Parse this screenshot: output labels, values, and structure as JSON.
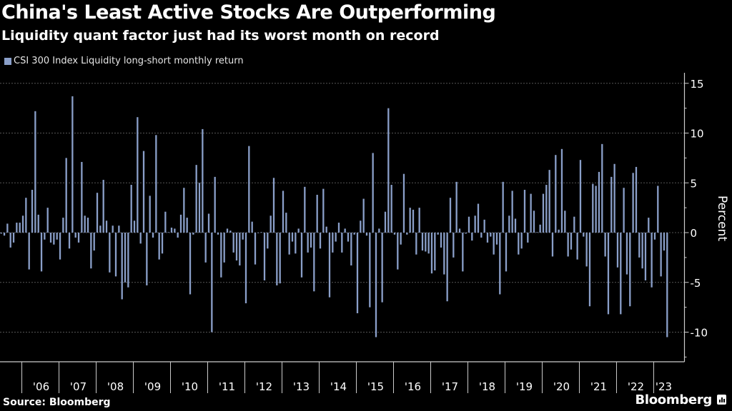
{
  "header": {
    "title": "China's Least Active Stocks Are Outperforming",
    "subtitle": "Liquidity quant factor just had its worst month on record"
  },
  "footer": {
    "source": "Source: Bloomberg",
    "brand": "Bloomberg"
  },
  "colors": {
    "bar": "#8a9fc9",
    "background": "#000000",
    "grid": "#555555",
    "axis": "#cccccc"
  },
  "chart_data": {
    "type": "bar",
    "title": "China's Least Active Stocks Are Outperforming",
    "subtitle": "Liquidity quant factor just had its worst month on record",
    "legend": [
      "CSI 300 Index Liquidity long-short monthly return"
    ],
    "legend_position": "top-left",
    "xlabel": "",
    "ylabel": "Percent",
    "y_axis_side": "right",
    "ylim": [
      -13,
      16
    ],
    "yticks": [
      15,
      10,
      5,
      0,
      -5,
      -10
    ],
    "grid": true,
    "x_start": "2005-06",
    "x_end": "2023-05",
    "frequency": "monthly",
    "xtick_labels": [
      "'06",
      "'07",
      "'08",
      "'09",
      "'10",
      "'11",
      "'12",
      "'13",
      "'14",
      "'15",
      "'16",
      "'17",
      "'18",
      "'19",
      "'20",
      "'21",
      "'22",
      "'23"
    ],
    "series": [
      {
        "name": "CSI 300 Index Liquidity long-short monthly return",
        "values": [
          -0.1,
          -0.3,
          0.9,
          -1.5,
          -1.0,
          1.0,
          1.0,
          1.7,
          3.5,
          -3.7,
          4.3,
          12.2,
          1.8,
          -3.9,
          -0.7,
          2.5,
          -1.0,
          -1.2,
          -0.7,
          -2.7,
          1.5,
          7.5,
          -1.6,
          13.7,
          -0.5,
          -1.0,
          7.1,
          1.7,
          1.5,
          -3.6,
          -1.8,
          4.0,
          0.7,
          5.3,
          1.2,
          -4.0,
          0.7,
          -4.4,
          0.7,
          -6.7,
          -5.0,
          -5.5,
          4.8,
          1.2,
          11.6,
          -1.1,
          8.2,
          -5.3,
          3.7,
          -0.5,
          9.8,
          -2.7,
          -2.1,
          2.1,
          0.05,
          0.5,
          0.4,
          -0.5,
          1.8,
          4.5,
          1.5,
          -6.2,
          -0.2,
          6.8,
          5.0,
          10.4,
          -3.0,
          1.9,
          -10.0,
          5.6,
          -0.2,
          -4.5,
          -3.0,
          0.4,
          0.2,
          -2.0,
          -2.8,
          -3.3,
          -0.7,
          -7.1,
          8.7,
          1.1,
          -3.2,
          -0.05,
          0.05,
          -4.8,
          -1.6,
          1.7,
          5.5,
          -5.3,
          -5.1,
          4.2,
          2.0,
          -2.2,
          -0.9,
          -2.1,
          0.4,
          -4.5,
          4.6,
          -2.0,
          -1.5,
          -5.9,
          3.8,
          -1.6,
          4.4,
          0.6,
          -6.5,
          -2.0,
          -0.9,
          1.0,
          -2.0,
          0.4,
          -0.9,
          -3.3,
          -0.2,
          -8.1,
          1.2,
          3.4,
          -0.3,
          -7.5,
          8.0,
          -10.5,
          0.4,
          -7.0,
          2.1,
          12.5,
          4.8,
          -0.2,
          -3.7,
          -1.2,
          5.9,
          -0.2,
          2.5,
          2.3,
          -2.2,
          2.5,
          -1.8,
          -1.9,
          -2.1,
          -4.1,
          -3.8,
          -0.2,
          -1.5,
          -4.2,
          -6.9,
          3.5,
          -2.5,
          5.1,
          0.4,
          -3.9,
          -0.1,
          1.6,
          -0.8,
          1.7,
          2.9,
          -0.5,
          1.3,
          -1.0,
          -0.4,
          -2.2,
          -1.2,
          -6.2,
          5.1,
          -3.9,
          1.7,
          4.2,
          1.4,
          -2.2,
          -1.6,
          4.3,
          -1.0,
          3.9,
          2.2,
          0.05,
          0.8,
          3.9,
          4.8,
          6.3,
          -2.4,
          7.8,
          0.3,
          8.4,
          2.2,
          -2.4,
          -1.7,
          1.6,
          -2.7,
          7.3,
          -0.4,
          -3.4,
          -7.4,
          4.9,
          4.7,
          6.1,
          8.9,
          -2.4,
          -8.2,
          5.6,
          6.9,
          -3.5,
          -8.2,
          4.5,
          -4.2,
          -7.4,
          6.0,
          6.6,
          -2.5,
          -3.6,
          -4.8,
          1.5,
          -5.5,
          -0.7,
          4.7,
          -4.4,
          -1.8,
          -10.5
        ]
      }
    ]
  }
}
